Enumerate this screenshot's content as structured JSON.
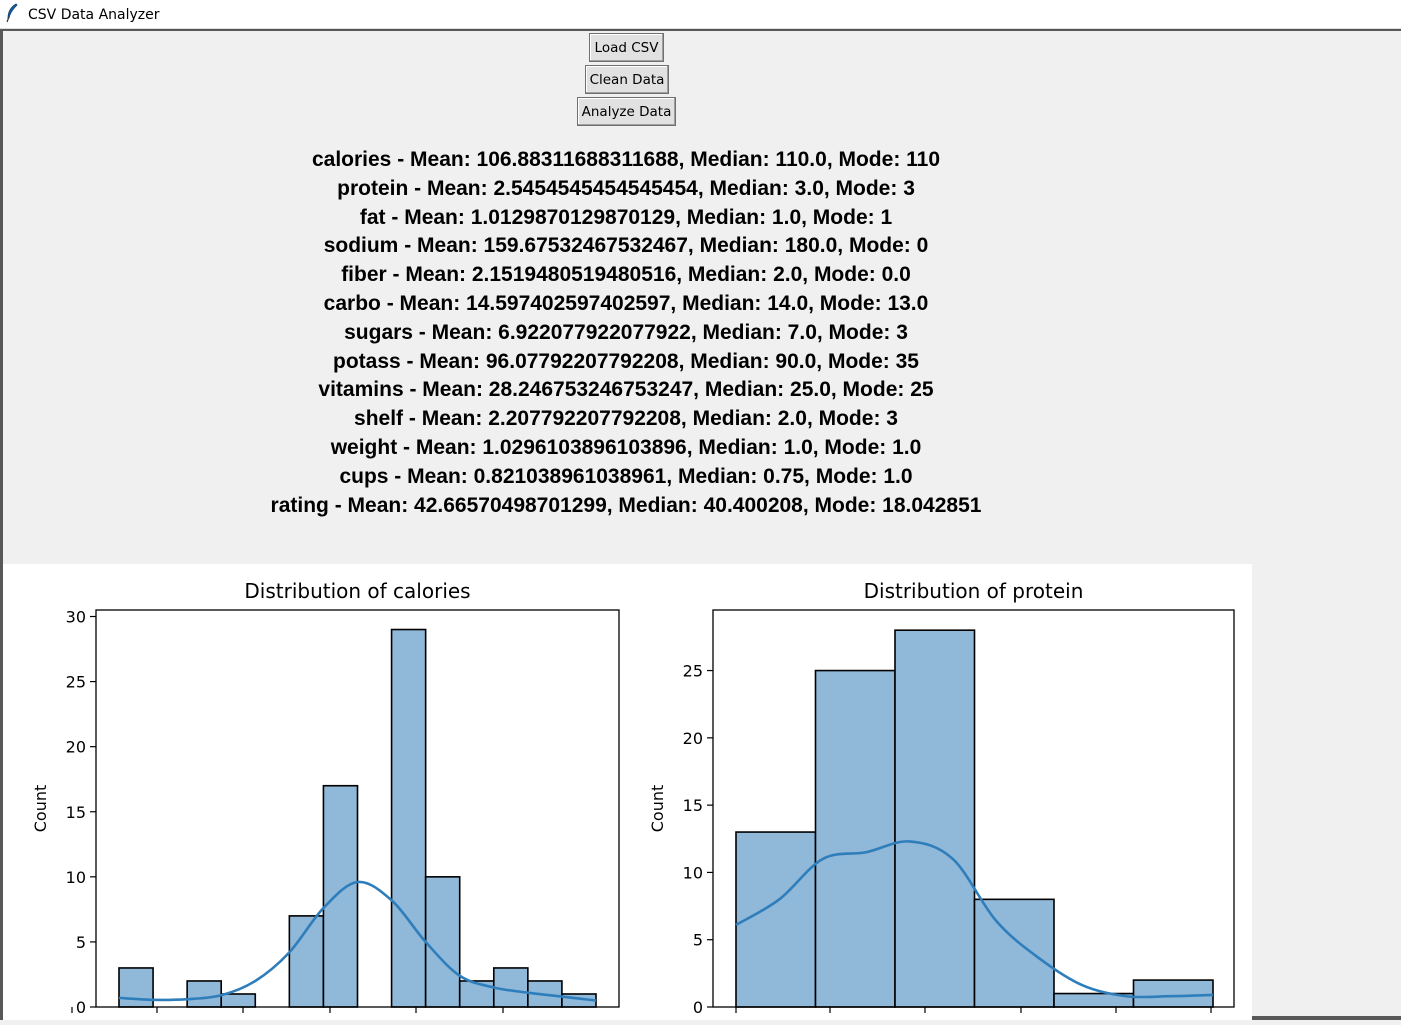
{
  "window": {
    "title": "CSV Data Analyzer"
  },
  "buttons": {
    "load": "Load CSV",
    "clean": "Clean Data",
    "analyze": "Analyze Data"
  },
  "stats": [
    "calories - Mean: 106.88311688311688, Median: 110.0, Mode: 110",
    "protein - Mean: 2.5454545454545454, Median: 3.0, Mode: 3",
    "fat - Mean: 1.0129870129870129, Median: 1.0, Mode: 1",
    "sodium - Mean: 159.67532467532467, Median: 180.0, Mode: 0",
    "fiber - Mean: 2.1519480519480516, Median: 2.0, Mode: 0.0",
    "carbo - Mean: 14.597402597402597, Median: 14.0, Mode: 13.0",
    "sugars - Mean: 6.922077922077922, Median: 7.0, Mode: 3",
    "potass - Mean: 96.07792207792208, Median: 90.0, Mode: 35",
    "vitamins - Mean: 28.246753246753247, Median: 25.0, Mode: 25",
    "shelf - Mean: 2.207792207792208, Median: 2.0, Mode: 3",
    "weight - Mean: 1.0296103896103896, Median: 1.0, Mode: 1.0",
    "cups - Mean: 0.821038961038961, Median: 0.75, Mode: 1.0",
    "rating - Mean: 42.66570498701299, Median: 40.400208, Mode: 18.042851"
  ],
  "colors": {
    "bar_fill": "#8fb8d9",
    "bar_edge": "#000000",
    "kde_line": "#2f7ebc"
  },
  "chart_data": [
    {
      "type": "bar",
      "title": "Distribution of calories",
      "ylabel": "Count",
      "xlabel": "",
      "ylim": [
        0,
        30.5
      ],
      "yticks": [
        0,
        5,
        10,
        15,
        20,
        25,
        30
      ],
      "x_tick_labels_visible": false,
      "values": [
        3,
        0,
        2,
        1,
        0,
        7,
        17,
        0,
        29,
        10,
        2,
        3,
        2,
        1
      ],
      "kde": [
        0.7,
        0.55,
        0.6,
        0.9,
        2.0,
        4.2,
        7.6,
        9.6,
        8.2,
        5.0,
        2.4,
        1.5,
        1.1,
        0.8,
        0.5
      ],
      "grid": false
    },
    {
      "type": "bar",
      "title": "Distribution of protein",
      "ylabel": "Count",
      "xlabel": "",
      "ylim": [
        0,
        29.5
      ],
      "yticks": [
        0,
        5,
        10,
        15,
        20,
        25
      ],
      "x_tick_labels_visible": false,
      "values": [
        13,
        25,
        28,
        8,
        1,
        2
      ],
      "kde": [
        6.1,
        8.0,
        11.0,
        11.5,
        12.3,
        11.0,
        6.4,
        3.6,
        1.6,
        0.8,
        0.8,
        0.9
      ],
      "grid": false
    }
  ]
}
